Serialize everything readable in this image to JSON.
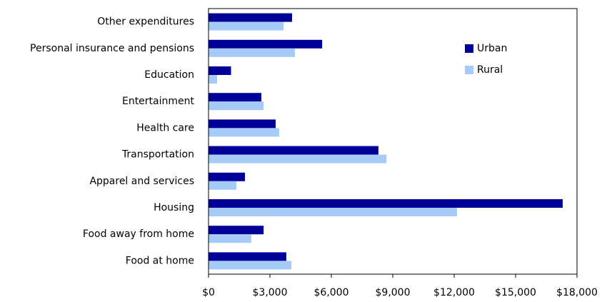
{
  "chart_data": {
    "type": "hbar",
    "categories": [
      "Other expenditures",
      "Personal insurance and pensions",
      "Education",
      "Entertainment",
      "Health care",
      "Transportation",
      "Apparel and services",
      "Housing",
      "Food away  from home",
      "Food at home"
    ],
    "series": [
      {
        "name": "Urban",
        "color": "#000099",
        "values": [
          4080,
          5550,
          1100,
          2580,
          3280,
          8300,
          1780,
          17300,
          2690,
          3800
        ]
      },
      {
        "name": "Rural",
        "color": "#a6cbf7",
        "values": [
          3660,
          4220,
          420,
          2690,
          3450,
          8690,
          1360,
          12140,
          2090,
          4050
        ]
      }
    ],
    "xlim": [
      0,
      18000
    ],
    "xticks": [
      {
        "value": 0,
        "label": "$0"
      },
      {
        "value": 3000,
        "label": "$3,000"
      },
      {
        "value": 6000,
        "label": "$6,000"
      },
      {
        "value": 9000,
        "label": "$9,000"
      },
      {
        "value": 12000,
        "label": "$12,000"
      },
      {
        "value": 15000,
        "label": "$15,000"
      },
      {
        "value": 18000,
        "label": "$18,000"
      }
    ],
    "legend": "upper right"
  }
}
